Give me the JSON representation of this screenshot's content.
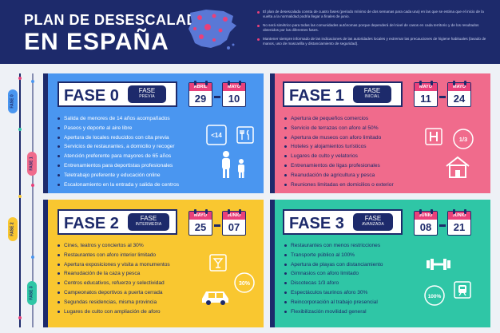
{
  "header": {
    "title_line1": "PLAN DE DESESCALADA",
    "title_line2": "EN ESPAÑA",
    "bullets": [
      "El plan de desescalada consta de cuatro fases (periodo mínimo de dos semanas para cada una) en las que se estima que el inicio de la vuelta a la normalidad podría llegar a finales de junio.",
      "No será simétrico para todas las comunidades autónomas porque dependerá del nivel de casos en cada territorio y de los resultados obtenidos por las diferentes fases.",
      "Mantener siempre informado de las indicaciones de las autoridades locales y extremar las precauciones de higiene habituales (lavado de manos, uso de mascarilla y distanciamiento de seguridad)."
    ]
  },
  "timeline": {
    "tags": [
      "FASE 0",
      "FASE 1",
      "FASE 2",
      "FASE 3"
    ]
  },
  "phases": [
    {
      "name": "FASE 0",
      "badge_top": "FASE",
      "badge_sub": "PREVIA",
      "start_month": "ABRIL",
      "start_day": "29",
      "end_month": "MAYO",
      "end_day": "10",
      "icon_badge": "<14",
      "items": [
        "Salida de menores de 14 años acompañados",
        "Paseos y deporte al aire libre",
        "Apertura de locales reducidos con cita previa",
        "Servicios de restaurantes, a domicilio y recoger",
        "Atención preferente para mayores de 65 años",
        "Entrenamientos para deportistas profesionales",
        "Teletrabajo preferente y educación online",
        "Escalonamiento en la entrada y salida de centros"
      ]
    },
    {
      "name": "FASE 1",
      "badge_top": "FASE",
      "badge_sub": "INICIAL",
      "start_month": "MAYO",
      "start_day": "11",
      "end_month": "MAYO",
      "end_day": "24",
      "icon_badge": "1/3",
      "items": [
        "Apertura de pequeños comercios",
        "Servicio de terrazas con aforo al 50%",
        "Apertura de museos con aforo limitado",
        "Hoteles y alojamientos turísticos",
        "Lugares de culto y velatorios",
        "Entrenamientos de ligas profesionales",
        "Reanudación de agricultura y pesca",
        "Reuniones limitadas en domicilios o exterior"
      ]
    },
    {
      "name": "FASE 2",
      "badge_top": "FASE",
      "badge_sub": "INTERMEDIA",
      "start_month": "MAYO",
      "start_day": "25",
      "end_month": "JUNIO",
      "end_day": "07",
      "icon_badge": "30%",
      "items": [
        "Cines, teatros y conciertos al 30%",
        "Restaurantes con aforo interior limitado",
        "Apertura exposiciones y visita a monumentos",
        "Reanudación de la caza y pesca",
        "Centros educativos, refuerzo y selectividad",
        "Campeonatos deportivos a puerta cerrada",
        "Segundas residencias, misma provincia",
        "Lugares de culto con ampliación de aforo"
      ]
    },
    {
      "name": "FASE 3",
      "badge_top": "FASE",
      "badge_sub": "AVANZADA",
      "start_month": "JUNIO",
      "start_day": "08",
      "end_month": "JUNIO",
      "end_day": "21",
      "icon_badge": "100%",
      "items": [
        "Restaurantes con menos restricciones",
        "Transporte público al 100%",
        "Apertura de playas con distanciamiento",
        "Gimnasios con aforo limitado",
        "Discotecas 1/3 aforo",
        "Espectáculos taurinos aforo 30%",
        "Reincorporación al trabajo presencial",
        "Flexibilización movilidad general"
      ]
    }
  ],
  "colors": {
    "navy": "#1d2a6b",
    "blue": "#4a96f0",
    "pink": "#f06b8c",
    "yellow": "#f9c730",
    "teal": "#2fc6a6",
    "accent_pink": "#e9407a"
  }
}
